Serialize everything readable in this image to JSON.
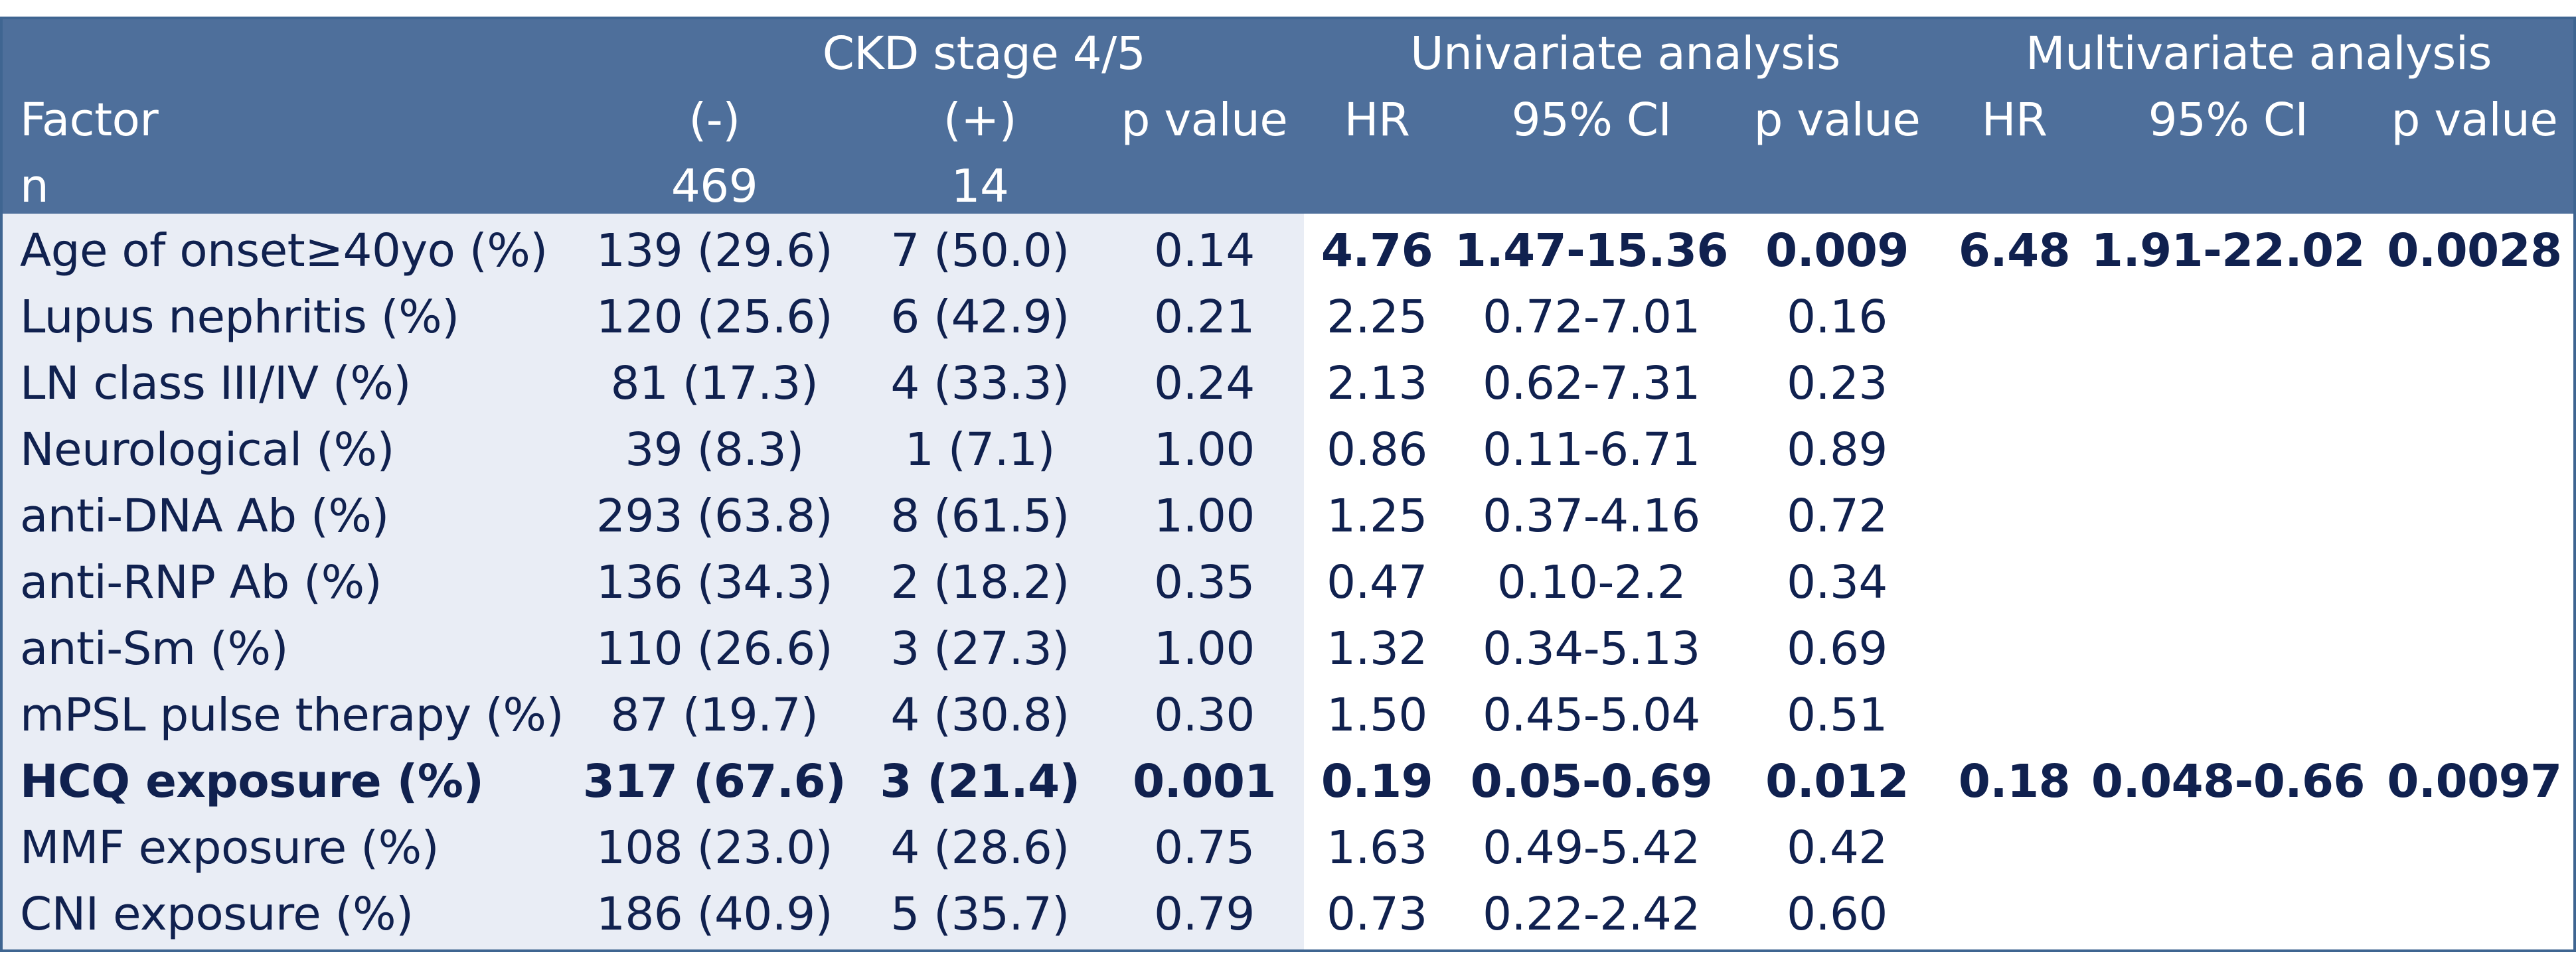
{
  "headers": {
    "group_ckd": "CKD stage 4/5",
    "group_uni": "Univariate analysis",
    "group_multi": "Multivariate analysis",
    "col_factor": "Factor",
    "col_neg": "(-)",
    "col_pos": "(+)",
    "col_p1": "p value",
    "col_hr_uni": "HR",
    "col_ci_uni": "95% CI",
    "col_p_uni": "p value",
    "col_hr_multi": "HR",
    "col_ci_multi": "95% CI",
    "col_p_multi": "p value",
    "n_label": "n",
    "n_neg": "469",
    "n_pos": "14"
  },
  "rows": [
    {
      "factor": "Age of onset≥40yo (%)",
      "neg": "139 (29.6)",
      "pos": "7 (50.0)",
      "p": "0.14",
      "hr_uni": "4.76",
      "ci_uni": "1.47-15.36",
      "p_uni": "0.009",
      "hr_multi": "6.48",
      "ci_multi": "1.91-22.02",
      "p_multi": "0.0028"
    },
    {
      "factor": "Lupus nephritis (%)",
      "neg": "120 (25.6)",
      "pos": "6 (42.9)",
      "p": "0.21",
      "hr_uni": "2.25",
      "ci_uni": "0.72-7.01",
      "p_uni": "0.16",
      "hr_multi": "",
      "ci_multi": "",
      "p_multi": ""
    },
    {
      "factor": "LN class III/IV (%)",
      "neg": "81 (17.3)",
      "pos": "4 (33.3)",
      "p": "0.24",
      "hr_uni": "2.13",
      "ci_uni": "0.62-7.31",
      "p_uni": "0.23",
      "hr_multi": "",
      "ci_multi": "",
      "p_multi": ""
    },
    {
      "factor": "Neurological (%)",
      "neg": "39 (8.3)",
      "pos": "1 (7.1)",
      "p": "1.00",
      "hr_uni": "0.86",
      "ci_uni": "0.11-6.71",
      "p_uni": "0.89",
      "hr_multi": "",
      "ci_multi": "",
      "p_multi": ""
    },
    {
      "factor": "anti-DNA Ab (%)",
      "neg": "293 (63.8)",
      "pos": "8 (61.5)",
      "p": "1.00",
      "hr_uni": "1.25",
      "ci_uni": "0.37-4.16",
      "p_uni": "0.72",
      "hr_multi": "",
      "ci_multi": "",
      "p_multi": ""
    },
    {
      "factor": "anti-RNP Ab (%)",
      "neg": "136 (34.3)",
      "pos": "2 (18.2)",
      "p": "0.35",
      "hr_uni": "0.47",
      "ci_uni": "0.10-2.2",
      "p_uni": "0.34",
      "hr_multi": "",
      "ci_multi": "",
      "p_multi": ""
    },
    {
      "factor": "anti-Sm (%)",
      "neg": "110 (26.6)",
      "pos": "3 (27.3)",
      "p": "1.00",
      "hr_uni": "1.32",
      "ci_uni": "0.34-5.13",
      "p_uni": "0.69",
      "hr_multi": "",
      "ci_multi": "",
      "p_multi": ""
    },
    {
      "factor": "mPSL pulse therapy (%)",
      "neg": "87 (19.7)",
      "pos": "4 (30.8)",
      "p": "0.30",
      "hr_uni": "1.50",
      "ci_uni": "0.45-5.04",
      "p_uni": "0.51",
      "hr_multi": "",
      "ci_multi": "",
      "p_multi": ""
    },
    {
      "factor": "HCQ exposure (%)",
      "neg": "317 (67.6)",
      "pos": "3 (21.4)",
      "p": "0.001",
      "hr_uni": "0.19",
      "ci_uni": "0.05-0.69",
      "p_uni": "0.012",
      "hr_multi": "0.18",
      "ci_multi": "0.048-0.66",
      "p_multi": "0.0097"
    },
    {
      "factor": "MMF exposure (%)",
      "neg": "108 (23.0)",
      "pos": "4 (28.6)",
      "p": "0.75",
      "hr_uni": "1.63",
      "ci_uni": "0.49-5.42",
      "p_uni": "0.42",
      "hr_multi": "",
      "ci_multi": "",
      "p_multi": ""
    },
    {
      "factor": "CNI exposure (%)",
      "neg": "186 (40.9)",
      "pos": "5 (35.7)",
      "p": "0.79",
      "hr_uni": "0.73",
      "ci_uni": "0.22-2.42",
      "p_uni": "0.60",
      "hr_multi": "",
      "ci_multi": "",
      "p_multi": ""
    }
  ],
  "colors": {
    "header_bg": "#4e6f9b",
    "header_text": "#ffffff",
    "body_text": "#10214f",
    "shade_bg": "#e9edf5",
    "border": "#3f6591"
  }
}
